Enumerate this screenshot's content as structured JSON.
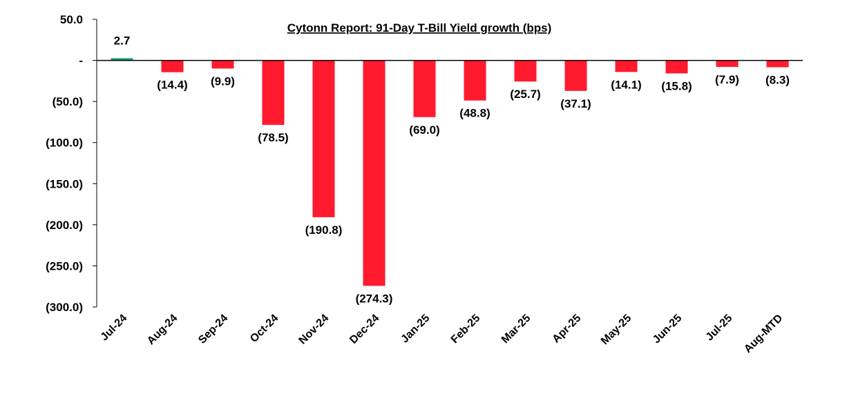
{
  "chart_data": {
    "type": "bar",
    "title": "Cytonn Report:  91-Day T-Bill Yield growth (bps)",
    "xlabel": "",
    "ylabel": "",
    "ylim": [
      -300,
      50
    ],
    "yticks": [
      50,
      0,
      -50,
      -100,
      -150,
      -200,
      -250,
      -300
    ],
    "ytick_labels": [
      "50.0",
      "-",
      "(50.0)",
      "(100.0)",
      "(150.0)",
      "(200.0)",
      "(250.0)",
      "(300.0)"
    ],
    "categories": [
      "Jul-24",
      "Aug-24",
      "Sep-24",
      "Oct-24",
      "Nov-24",
      "Dec-24",
      "Jan-25",
      "Feb-25",
      "Mar-25",
      "Apr-25",
      "May-25",
      "Jun-25",
      "Jul-25",
      "Aug-MTD"
    ],
    "values": [
      2.7,
      -14.4,
      -9.9,
      -78.5,
      -190.8,
      -274.3,
      -69.0,
      -48.8,
      -25.7,
      -37.1,
      -14.1,
      -15.8,
      -7.9,
      -8.3
    ],
    "value_labels": [
      "2.7",
      "(14.4)",
      "(9.9)",
      "(78.5)",
      "(190.8)",
      "(274.3)",
      "(69.0)",
      "(48.8)",
      "(25.7)",
      "(37.1)",
      "(14.1)",
      "(15.8)",
      "(7.9)",
      "(8.3)"
    ],
    "colors": {
      "positive": "#1f9e6e",
      "negative": "#ff1a2e",
      "axis": "#000000"
    },
    "grid": false,
    "legend": "none"
  }
}
